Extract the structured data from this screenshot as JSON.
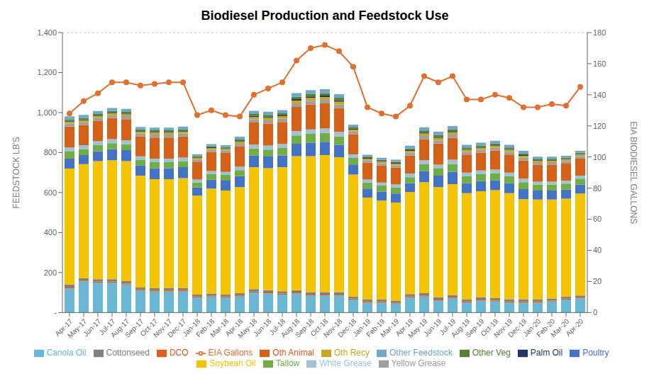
{
  "chart_data": {
    "type": "bar",
    "title": "Biodiesel Production and Feedstock Use",
    "ylabel": "FEEDSTOCK LB'S",
    "y2label": "EIA BIODIESEL GALLONS",
    "stacked": true,
    "grid": true,
    "legend": "bottom",
    "categories": [
      "Apr-17",
      "May-17",
      "Jun-17",
      "Jul-17",
      "Aug-17",
      "Sep-17",
      "Oct-17",
      "Nov-17",
      "Dec-17",
      "Jan-18",
      "Feb-18",
      "Mar-18",
      "Apr-18",
      "May-18",
      "Jun-18",
      "Jul-18",
      "Aug-18",
      "Sep-18",
      "Oct-18",
      "Nov-18",
      "Dec-18",
      "Jan-19",
      "Feb-19",
      "Mar-19",
      "Apr-19",
      "May-19",
      "Jun-19",
      "Jul-19",
      "Aug-19",
      "Sep-19",
      "Oct-19",
      "Nov-19",
      "Dec-19",
      "Jan-20",
      "Feb-20",
      "Mar-20",
      "Apr-20"
    ],
    "ylim": [
      0,
      1400
    ],
    "yticks": [
      {
        "value": 0,
        "label": "-"
      },
      200,
      400,
      600,
      800,
      {
        "value": 1000,
        "label": "1,000"
      },
      {
        "value": 1200,
        "label": "1,200"
      },
      {
        "value": 1400,
        "label": "1,400"
      }
    ],
    "y2lim": [
      0,
      180
    ],
    "y2ticks": [
      0,
      20,
      40,
      60,
      80,
      100,
      120,
      140,
      160,
      180
    ],
    "series": [
      {
        "name": "Canola Oil",
        "color": "#6bb8d4",
        "values": [
          120,
          155,
          150,
          150,
          140,
          110,
          105,
          105,
          105,
          75,
          80,
          75,
          80,
          100,
          95,
          90,
          95,
          85,
          85,
          85,
          65,
          50,
          50,
          45,
          75,
          80,
          60,
          70,
          50,
          60,
          55,
          50,
          50,
          50,
          55,
          65,
          70
        ]
      },
      {
        "name": "DCO",
        "color": "#e05c1a",
        "values": [
          5,
          5,
          5,
          5,
          5,
          5,
          5,
          5,
          5,
          5,
          5,
          5,
          5,
          5,
          5,
          5,
          5,
          5,
          5,
          5,
          5,
          5,
          5,
          5,
          5,
          5,
          5,
          5,
          5,
          5,
          5,
          5,
          5,
          5,
          5,
          5,
          5
        ]
      },
      {
        "name": "Cottonseed",
        "color": "#808080",
        "values": [
          15,
          12,
          12,
          12,
          12,
          10,
          12,
          12,
          12,
          10,
          10,
          10,
          12,
          12,
          12,
          12,
          12,
          12,
          12,
          12,
          10,
          10,
          10,
          10,
          12,
          12,
          12,
          12,
          12,
          12,
          12,
          12,
          12,
          10,
          10,
          10,
          10
        ]
      },
      {
        "name": "Soybean Oil",
        "color": "#f5c400",
        "values": [
          580,
          570,
          590,
          595,
          600,
          560,
          545,
          545,
          550,
          495,
          525,
          520,
          530,
          610,
          610,
          620,
          670,
          680,
          685,
          675,
          610,
          510,
          495,
          490,
          510,
          555,
          550,
          555,
          530,
          530,
          540,
          530,
          500,
          500,
          495,
          490,
          510
        ]
      },
      {
        "name": "Poultry",
        "color": "#4472c4",
        "values": [
          50,
          45,
          50,
          55,
          55,
          50,
          55,
          55,
          55,
          40,
          45,
          50,
          55,
          58,
          58,
          58,
          62,
          67,
          67,
          62,
          48,
          45,
          45,
          45,
          45,
          55,
          58,
          62,
          50,
          50,
          50,
          50,
          50,
          45,
          45,
          45,
          45
        ]
      },
      {
        "name": "Tallow",
        "color": "#70ad47",
        "values": [
          35,
          30,
          30,
          30,
          30,
          28,
          30,
          30,
          30,
          25,
          28,
          28,
          30,
          35,
          35,
          38,
          42,
          45,
          45,
          42,
          35,
          30,
          30,
          30,
          30,
          35,
          35,
          38,
          35,
          35,
          35,
          35,
          35,
          30,
          30,
          30,
          30
        ]
      },
      {
        "name": "White Grease",
        "color": "#9dc3d4",
        "values": [
          20,
          20,
          20,
          20,
          20,
          18,
          18,
          18,
          18,
          15,
          15,
          15,
          18,
          20,
          20,
          20,
          22,
          22,
          22,
          22,
          18,
          15,
          15,
          15,
          18,
          20,
          20,
          22,
          18,
          18,
          18,
          18,
          18,
          15,
          15,
          15,
          15
        ]
      },
      {
        "name": "Oth Animal",
        "color": "#d4601a",
        "values": [
          105,
          100,
          100,
          105,
          105,
          100,
          105,
          105,
          105,
          90,
          95,
          95,
          100,
          110,
          110,
          110,
          120,
          125,
          125,
          120,
          100,
          85,
          85,
          85,
          90,
          105,
          105,
          110,
          90,
          90,
          95,
          90,
          90,
          85,
          85,
          85,
          85
        ]
      },
      {
        "name": "Yellow Grease",
        "color": "#a0a0a0",
        "values": [
          15,
          15,
          15,
          15,
          15,
          14,
          15,
          15,
          15,
          10,
          12,
          12,
          14,
          16,
          16,
          16,
          18,
          18,
          18,
          18,
          14,
          12,
          12,
          12,
          14,
          16,
          16,
          16,
          14,
          14,
          14,
          14,
          14,
          12,
          12,
          12,
          12
        ]
      },
      {
        "name": "Oth Recy",
        "color": "#c8a820",
        "values": [
          10,
          10,
          10,
          10,
          10,
          10,
          10,
          10,
          10,
          8,
          8,
          8,
          10,
          12,
          12,
          12,
          14,
          14,
          14,
          14,
          10,
          8,
          8,
          8,
          10,
          12,
          12,
          12,
          10,
          10,
          10,
          10,
          10,
          8,
          8,
          8,
          8
        ]
      },
      {
        "name": "Palm Oil",
        "color": "#1f3864",
        "values": [
          3,
          3,
          3,
          3,
          3,
          3,
          3,
          3,
          3,
          3,
          3,
          3,
          3,
          5,
          5,
          5,
          7,
          7,
          7,
          7,
          5,
          3,
          3,
          3,
          3,
          5,
          5,
          5,
          3,
          3,
          3,
          3,
          3,
          3,
          3,
          3,
          3
        ]
      },
      {
        "name": "Other Veg",
        "color": "#538135",
        "values": [
          8,
          8,
          8,
          8,
          8,
          8,
          8,
          8,
          8,
          6,
          6,
          6,
          8,
          10,
          10,
          10,
          12,
          12,
          12,
          12,
          8,
          6,
          6,
          6,
          8,
          10,
          10,
          10,
          8,
          8,
          8,
          8,
          8,
          6,
          6,
          6,
          6
        ]
      },
      {
        "name": "Other Feedstock",
        "color": "#6fa8c8",
        "values": [
          15,
          15,
          15,
          15,
          15,
          12,
          14,
          14,
          14,
          10,
          10,
          10,
          14,
          16,
          16,
          16,
          18,
          20,
          20,
          18,
          12,
          10,
          10,
          10,
          14,
          16,
          16,
          16,
          14,
          14,
          14,
          14,
          14,
          10,
          10,
          10,
          10
        ]
      },
      {
        "name": "EIA Gallons",
        "type": "line",
        "axis": "y2",
        "color": "#e07030",
        "marker": "circle",
        "values": [
          128,
          136,
          141,
          148,
          148,
          146,
          147,
          148,
          148,
          127,
          130,
          127,
          126,
          140,
          144,
          148,
          162,
          170,
          172,
          168,
          158,
          132,
          128,
          126,
          133,
          152,
          148,
          152,
          137,
          137,
          140,
          138,
          132,
          132,
          134,
          133,
          145
        ]
      }
    ]
  }
}
